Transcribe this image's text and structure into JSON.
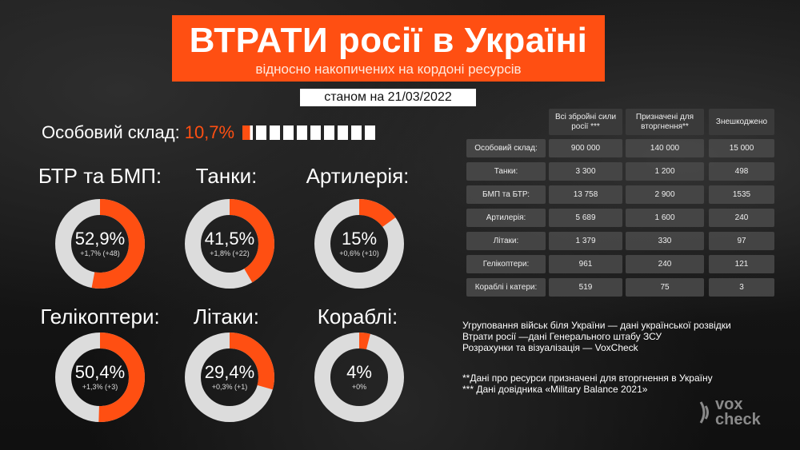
{
  "header": {
    "title": "ВТРАТИ росії в Україні",
    "subtitle": "відносно накопичених на кордоні ресурсів",
    "date": "станом на 21/03/2022"
  },
  "personnel": {
    "label": "Особовий склад:",
    "percent_label": "10,7%",
    "percent": 10.7,
    "blocks": 10
  },
  "colors": {
    "accent": "#ff4f12",
    "ring_rest": "#dcdcdc",
    "panel": "#484848"
  },
  "chart_data": [
    {
      "type": "pie",
      "title": "БТР та БМП:",
      "values": [
        52.9,
        47.1
      ],
      "center_label": "52,9%",
      "sub_label": "+1,7% (+48)"
    },
    {
      "type": "pie",
      "title": "Танки:",
      "values": [
        41.5,
        58.5
      ],
      "center_label": "41,5%",
      "sub_label": "+1,8% (+22)"
    },
    {
      "type": "pie",
      "title": "Артилерія:",
      "values": [
        15,
        85
      ],
      "center_label": "15%",
      "sub_label": "+0,6% (+10)"
    },
    {
      "type": "pie",
      "title": "Гелікоптери:",
      "values": [
        50.4,
        49.6
      ],
      "center_label": "50,4%",
      "sub_label": "+1,3% (+3)"
    },
    {
      "type": "pie",
      "title": "Літаки:",
      "values": [
        29.4,
        70.6
      ],
      "center_label": "29,4%",
      "sub_label": "+0,3% (+1)"
    },
    {
      "type": "pie",
      "title": "Кораблі:",
      "values": [
        4,
        96
      ],
      "center_label": "4%",
      "sub_label": "+0%"
    },
    {
      "type": "table",
      "columns": [
        "Всі збройні сили росії ***",
        "Призначені для вторгнення**",
        "Знешкоджено"
      ],
      "rows": [
        {
          "label": "Особовий склад:",
          "values": [
            "900 000",
            "140 000",
            "15 000"
          ]
        },
        {
          "label": "Танки:",
          "values": [
            "3 300",
            "1 200",
            "498"
          ]
        },
        {
          "label": "БМП та БТР:",
          "values": [
            "13 758",
            "2 900",
            "1535"
          ]
        },
        {
          "label": "Артилерія:",
          "values": [
            "5 689",
            "1 600",
            "240"
          ]
        },
        {
          "label": "Літаки:",
          "values": [
            "1 379",
            "330",
            "97"
          ]
        },
        {
          "label": "Гелікоптери:",
          "values": [
            "961",
            "240",
            "121"
          ]
        },
        {
          "label": "Кораблі і катери:",
          "values": [
            "519",
            "75",
            "3"
          ]
        }
      ]
    }
  ],
  "notes": {
    "sources": [
      "Угруповання військ біля України  — дані української розвідки",
      "Втрати росії —дані Генерального штабу ЗСУ",
      "Розрахунки та візуалізація — VoxCheck"
    ],
    "footnotes": [
      "**Дані про ресурси призначені для вторгнення в Україну",
      "*** Дані довідника «Military Balance 2021»"
    ]
  },
  "logo": {
    "line1": "vox",
    "line2": "check"
  }
}
